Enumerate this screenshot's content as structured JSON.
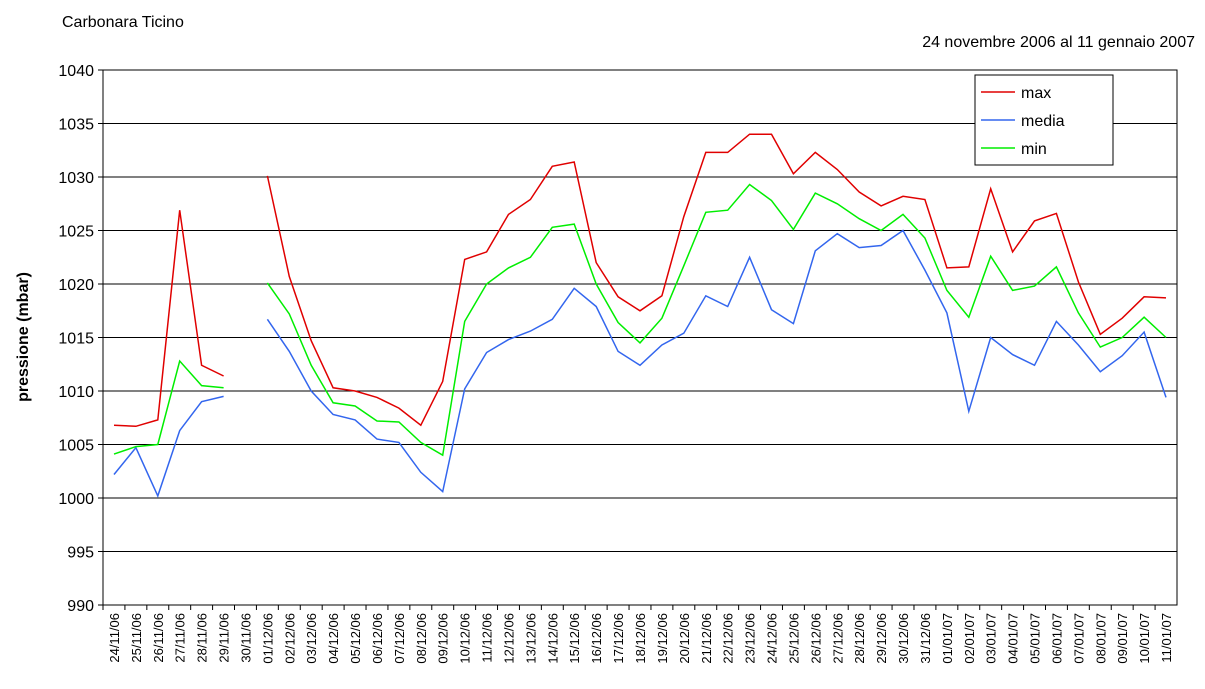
{
  "chart_data": {
    "type": "line",
    "title": "Carbonara Ticino",
    "subtitle": "24 novembre 2006 al 11 gennaio 2007",
    "y_label": "pressione (mbar)",
    "categories": [
      "24/11/06",
      "25/11/06",
      "26/11/06",
      "27/11/06",
      "28/11/06",
      "29/11/06",
      "30/11/06",
      "01/12/06",
      "02/12/06",
      "03/12/06",
      "04/12/06",
      "05/12/06",
      "06/12/06",
      "07/12/06",
      "08/12/06",
      "09/12/06",
      "10/12/06",
      "11/12/06",
      "12/12/06",
      "13/12/06",
      "14/12/06",
      "15/12/06",
      "16/12/06",
      "17/12/06",
      "18/12/06",
      "19/12/06",
      "20/12/06",
      "21/12/06",
      "22/12/06",
      "23/12/06",
      "24/12/06",
      "25/12/06",
      "26/12/06",
      "27/12/06",
      "28/12/06",
      "29/12/06",
      "30/12/06",
      "31/12/06",
      "01/01/07",
      "02/01/07",
      "03/01/07",
      "04/01/07",
      "05/01/07",
      "06/01/07",
      "07/01/07",
      "08/01/07",
      "09/01/07",
      "10/01/07",
      "11/01/07"
    ],
    "series": [
      {
        "name": "max",
        "color": "#e00000",
        "values": [
          1006.8,
          1006.7,
          1007.3,
          1026.9,
          1012.4,
          1011.4,
          null,
          1030.1,
          1020.7,
          1014.7,
          1010.3,
          1010.0,
          1009.4,
          1008.4,
          1006.8,
          1010.9,
          1022.3,
          1023.0,
          1026.5,
          1027.9,
          1031.0,
          1031.4,
          1022.0,
          1018.8,
          1017.5,
          1018.9,
          1026.3,
          1032.3,
          1032.3,
          1034.0,
          1034.0,
          1030.3,
          1032.3,
          1030.7,
          1028.6,
          1027.3,
          1028.2,
          1027.9,
          1021.5,
          1021.6,
          1028.9,
          1023.0,
          1025.9,
          1026.6,
          1020.2,
          1015.3,
          1016.8,
          1018.8,
          1018.7
        ]
      },
      {
        "name": "media",
        "color": "#3366ee",
        "values": [
          1002.2,
          1004.7,
          1000.2,
          1006.3,
          1009.0,
          1009.5,
          null,
          1016.7,
          1013.7,
          1010.0,
          1007.8,
          1007.3,
          1005.5,
          1005.2,
          1002.4,
          1000.6,
          1010.2,
          1013.6,
          1014.8,
          1015.6,
          1016.7,
          1019.6,
          1017.9,
          1013.7,
          1012.4,
          1014.3,
          1015.4,
          1018.9,
          1017.9,
          1022.5,
          1017.6,
          1016.3,
          1023.1,
          1024.7,
          1023.4,
          1023.6,
          1025.0,
          1021.3,
          1017.3,
          1008.1,
          1015.0,
          1013.4,
          1012.4,
          1016.5,
          1014.3,
          1011.8,
          1013.3,
          1015.5,
          1009.4
        ]
      },
      {
        "name": "min",
        "color": "#00ee00",
        "values": [
          1004.1,
          1004.8,
          1005.0,
          1012.8,
          1010.5,
          1010.3,
          null,
          1020.1,
          1017.2,
          1012.4,
          1008.9,
          1008.6,
          1007.2,
          1007.1,
          1005.2,
          1004.0,
          1016.5,
          1020.0,
          1021.5,
          1022.5,
          1025.3,
          1025.6,
          1020.0,
          1016.4,
          1014.5,
          1016.8,
          1021.7,
          1026.7,
          1026.9,
          1029.3,
          1027.8,
          1025.1,
          1028.5,
          1027.5,
          1026.1,
          1025.0,
          1026.5,
          1024.3,
          1019.4,
          1016.9,
          1022.6,
          1019.4,
          1019.8,
          1021.6,
          1017.3,
          1014.1,
          1015.0,
          1016.9,
          1015.0
        ]
      }
    ],
    "ylim": [
      990,
      1040
    ],
    "yticks": [
      990,
      995,
      1000,
      1005,
      1010,
      1015,
      1020,
      1025,
      1030,
      1035,
      1040
    ],
    "grid": true,
    "legend": "upper right"
  }
}
